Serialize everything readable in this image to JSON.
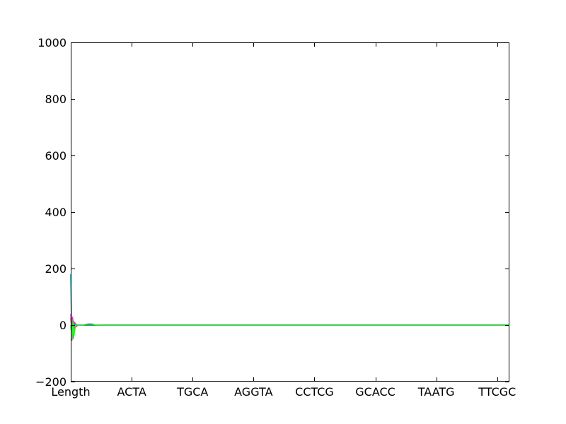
{
  "chart_data": {
    "type": "line",
    "title": "",
    "xlabel": "",
    "ylabel": "",
    "x_tick_labels": [
      "Length",
      "ACTA",
      "TGCA",
      "AGGTA",
      "CCTCG",
      "GCACC",
      "TAATG",
      "TTCGC"
    ],
    "x_range": [
      0,
      7.2
    ],
    "y_ticks": [
      -200,
      0,
      200,
      400,
      600,
      800,
      1000
    ],
    "y_tick_labels": [
      "−200",
      "0",
      "200",
      "400",
      "600",
      "800",
      "1000"
    ],
    "ylim": [
      -200,
      1000
    ],
    "grid": false,
    "legend": "none",
    "series": [
      {
        "color": "#cc44cc",
        "x": [
          0,
          0.02,
          0.03,
          0.04,
          0.06,
          0.1,
          0.2,
          7.2
        ],
        "y": [
          40,
          -55,
          30,
          -50,
          10,
          0,
          0,
          0
        ]
      },
      {
        "color": "#8b5a2b",
        "x": [
          0,
          0.02,
          0.04,
          0.06,
          0.12,
          7.2
        ],
        "y": [
          25,
          -20,
          20,
          -10,
          0,
          0
        ]
      },
      {
        "color": "#008b8b",
        "x": [
          0,
          0.01,
          0.02,
          0.04,
          0.08,
          7.2
        ],
        "y": [
          180,
          20,
          -15,
          5,
          0,
          0
        ]
      },
      {
        "color": "#33ee33",
        "x": [
          0,
          0.02,
          0.04,
          0.05,
          0.08,
          0.2,
          0.25,
          0.3,
          0.35,
          0.4,
          0.5,
          1.0,
          7.2
        ],
        "y": [
          0,
          -50,
          20,
          -40,
          0,
          0,
          3,
          5,
          4,
          1,
          0,
          0,
          0
        ]
      }
    ]
  }
}
